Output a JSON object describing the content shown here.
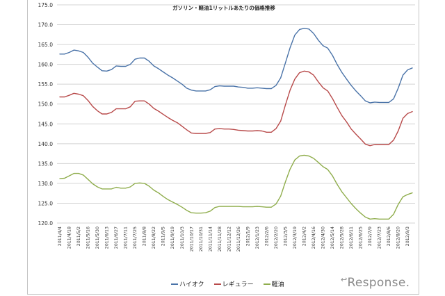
{
  "chart_data": {
    "type": "line",
    "title": "ガソリン・軽油1リットルあたりの価格推移",
    "xlabel": "",
    "ylabel": "",
    "ylim": [
      120.0,
      175.0
    ],
    "yticks": [
      "175.0",
      "170.0",
      "165.0",
      "160.0",
      "155.0",
      "150.0",
      "145.0",
      "140.0",
      "135.0",
      "130.0",
      "125.0",
      "120.0"
    ],
    "grid": true,
    "legend_position": "bottom",
    "x": [
      "2011/4/4",
      "2011/4/11",
      "2011/4/18",
      "2011/4/25",
      "2011/5/2",
      "2011/5/9",
      "2011/5/16",
      "2011/5/23",
      "2011/5/30",
      "2011/6/6",
      "2011/6/13",
      "2011/6/20",
      "2011/6/27",
      "2011/7/4",
      "2011/7/11",
      "2011/7/18",
      "2011/7/25",
      "2011/8/1",
      "2011/8/8",
      "2011/8/15",
      "2011/8/22",
      "2011/8/29",
      "2011/9/5",
      "2011/9/12",
      "2011/9/19",
      "2011/9/26",
      "2011/10/3",
      "2011/10/10",
      "2011/10/17",
      "2011/10/24",
      "2011/10/31",
      "2011/11/7",
      "2011/11/14",
      "2011/11/21",
      "2011/11/28",
      "2011/12/5",
      "2011/12/12",
      "2011/12/19",
      "2011/12/26",
      "2012/1/2",
      "2012/1/9",
      "2012/1/16",
      "2012/1/23",
      "2012/1/30",
      "2012/2/6",
      "2012/2/13",
      "2012/2/20",
      "2012/2/27",
      "2012/3/5",
      "2012/3/12",
      "2012/3/19",
      "2012/3/26",
      "2012/4/2",
      "2012/4/9",
      "2012/4/16",
      "2012/4/23",
      "2012/4/30",
      "2012/5/7",
      "2012/5/14",
      "2012/5/21",
      "2012/5/28",
      "2012/6/4",
      "2012/6/11",
      "2012/6/18",
      "2012/6/25",
      "2012/7/2",
      "2012/7/9",
      "2012/7/16",
      "2012/7/23",
      "2012/7/30",
      "2012/8/6",
      "2012/8/13",
      "2012/8/20",
      "2012/8/27",
      "2012/9/3",
      "2012/9/10"
    ],
    "xtick_labels": [
      "2011/4/4",
      "2011/4/18",
      "2011/5/2",
      "2011/5/16",
      "2011/5/30",
      "2011/6/13",
      "2011/6/27",
      "2011/7/11",
      "2011/7/25",
      "2011/8/8",
      "2011/8/22",
      "2011/9/5",
      "2011/9/19",
      "2011/10/3",
      "2011/10/17",
      "2011/10/31",
      "2011/11/14",
      "2011/11/28",
      "2011/12/12",
      "2011/12/26",
      "2012/1/9",
      "2012/1/23",
      "2012/2/6",
      "2012/2/20",
      "2012/3/5",
      "2012/3/19",
      "2012/4/2",
      "2012/4/16",
      "2012/4/30",
      "2012/5/14",
      "2012/5/28",
      "2012/6/11",
      "2012/6/25",
      "2012/7/9",
      "2012/7/23",
      "2012/8/6",
      "2012/8/20",
      "2012/9/3"
    ],
    "series": [
      {
        "name": "ハイオク",
        "color": "#4a73a8",
        "values": [
          162.6,
          162.6,
          163.0,
          163.6,
          163.4,
          163.0,
          161.8,
          160.3,
          159.3,
          158.4,
          158.3,
          158.7,
          159.6,
          159.5,
          159.5,
          160.0,
          161.3,
          161.6,
          161.6,
          160.8,
          159.6,
          158.9,
          158.1,
          157.3,
          156.6,
          155.8,
          155.0,
          154.0,
          153.5,
          153.3,
          153.3,
          153.3,
          153.6,
          154.4,
          154.6,
          154.5,
          154.5,
          154.5,
          154.3,
          154.2,
          154.0,
          154.0,
          154.1,
          154.0,
          153.9,
          153.9,
          154.7,
          156.6,
          160.4,
          164.2,
          167.4,
          168.8,
          169.1,
          168.9,
          167.8,
          166.1,
          164.7,
          164.1,
          162.3,
          160.0,
          158.0,
          156.3,
          154.7,
          153.3,
          152.1,
          150.8,
          150.3,
          150.5,
          150.4,
          150.4,
          150.4,
          151.3,
          154.0,
          157.3,
          158.6,
          159.1
        ]
      },
      {
        "name": "レギュラー",
        "color": "#b84a4a",
        "values": [
          151.8,
          151.8,
          152.2,
          152.7,
          152.5,
          152.1,
          150.9,
          149.4,
          148.3,
          147.5,
          147.5,
          147.9,
          148.8,
          148.8,
          148.8,
          149.3,
          150.7,
          150.8,
          150.8,
          150.0,
          148.9,
          148.2,
          147.4,
          146.6,
          145.9,
          145.3,
          144.4,
          143.5,
          142.7,
          142.6,
          142.6,
          142.6,
          142.8,
          143.7,
          143.8,
          143.7,
          143.7,
          143.6,
          143.4,
          143.3,
          143.2,
          143.2,
          143.3,
          143.2,
          142.9,
          142.9,
          143.8,
          145.7,
          149.8,
          153.5,
          156.3,
          157.9,
          158.3,
          158.1,
          157.3,
          155.6,
          154.1,
          153.3,
          151.4,
          149.2,
          147.1,
          145.5,
          143.7,
          142.4,
          141.2,
          139.9,
          139.5,
          139.8,
          139.8,
          139.8,
          139.8,
          140.9,
          143.2,
          146.4,
          147.6,
          148.1
        ]
      },
      {
        "name": "軽油",
        "color": "#8fad4c",
        "values": [
          131.2,
          131.3,
          131.9,
          132.5,
          132.5,
          132.1,
          131.0,
          129.9,
          129.1,
          128.6,
          128.6,
          128.6,
          129.0,
          128.8,
          128.8,
          129.1,
          130.0,
          130.1,
          130.0,
          129.3,
          128.3,
          127.6,
          126.7,
          125.9,
          125.3,
          124.7,
          124.0,
          123.2,
          122.6,
          122.5,
          122.5,
          122.6,
          123.0,
          123.9,
          124.2,
          124.2,
          124.2,
          124.2,
          124.2,
          124.1,
          124.1,
          124.1,
          124.2,
          124.1,
          124.0,
          124.0,
          124.8,
          126.8,
          130.4,
          133.6,
          135.9,
          136.9,
          137.1,
          136.9,
          136.3,
          135.3,
          134.2,
          133.5,
          131.9,
          129.8,
          127.9,
          126.4,
          124.9,
          123.6,
          122.5,
          121.5,
          121.0,
          121.1,
          121.0,
          121.0,
          121.0,
          122.2,
          124.7,
          126.6,
          127.2,
          127.6
        ]
      }
    ]
  },
  "legend": {
    "items": [
      {
        "label": "ハイオク",
        "color": "#4a73a8"
      },
      {
        "label": "レギュラー",
        "color": "#b84a4a"
      },
      {
        "label": "軽油",
        "color": "#8fad4c"
      }
    ]
  },
  "watermark": {
    "text": "Response."
  }
}
